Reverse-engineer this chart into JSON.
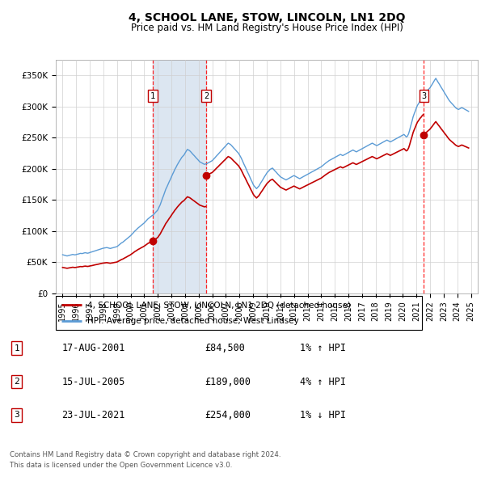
{
  "title": "4, SCHOOL LANE, STOW, LINCOLN, LN1 2DQ",
  "subtitle": "Price paid vs. HM Land Registry's House Price Index (HPI)",
  "legend_line1": "4, SCHOOL LANE, STOW, LINCOLN, LN1 2DQ (detached house)",
  "legend_line2": "HPI: Average price, detached house, West Lindsey",
  "footer1": "Contains HM Land Registry data © Crown copyright and database right 2024.",
  "footer2": "This data is licensed under the Open Government Licence v3.0.",
  "ylabel_ticks": [
    "£0",
    "£50K",
    "£100K",
    "£150K",
    "£200K",
    "£250K",
    "£300K",
    "£350K"
  ],
  "ytick_vals": [
    0,
    50000,
    100000,
    150000,
    200000,
    250000,
    300000,
    350000
  ],
  "ylim": [
    0,
    375000
  ],
  "xlim_start": 1994.5,
  "xlim_end": 2025.5,
  "sales": [
    {
      "label": "1",
      "date_num": 2001.63,
      "price": 84500,
      "date_str": "17-AUG-2001",
      "price_str": "£84,500",
      "hpi_str": "1% ↑ HPI"
    },
    {
      "label": "2",
      "date_num": 2005.54,
      "price": 189000,
      "date_str": "15-JUL-2005",
      "price_str": "£189,000",
      "hpi_str": "4% ↑ HPI"
    },
    {
      "label": "3",
      "date_num": 2021.55,
      "price": 254000,
      "date_str": "23-JUL-2021",
      "price_str": "£254,000",
      "hpi_str": "1% ↓ HPI"
    }
  ],
  "hpi_color": "#5b9bd5",
  "price_color": "#c00000",
  "sale_marker_color": "#c00000",
  "grid_color": "#d0d0d0",
  "vline_color": "#ff0000",
  "shade_color": "#dce6f1",
  "background_color": "#ffffff",
  "hpi_data": [
    [
      1995.0,
      62000
    ],
    [
      1995.08,
      61500
    ],
    [
      1995.17,
      61000
    ],
    [
      1995.25,
      60500
    ],
    [
      1995.33,
      60000
    ],
    [
      1995.42,
      60500
    ],
    [
      1995.5,
      61000
    ],
    [
      1995.58,
      61500
    ],
    [
      1995.67,
      62000
    ],
    [
      1995.75,
      62500
    ],
    [
      1995.83,
      62000
    ],
    [
      1995.92,
      61800
    ],
    [
      1996.0,
      62200
    ],
    [
      1996.08,
      62800
    ],
    [
      1996.17,
      63200
    ],
    [
      1996.25,
      63800
    ],
    [
      1996.33,
      64200
    ],
    [
      1996.42,
      63800
    ],
    [
      1996.5,
      64200
    ],
    [
      1996.58,
      64800
    ],
    [
      1996.67,
      65200
    ],
    [
      1996.75,
      64800
    ],
    [
      1996.83,
      64400
    ],
    [
      1996.92,
      64800
    ],
    [
      1997.0,
      65500
    ],
    [
      1997.08,
      66000
    ],
    [
      1997.17,
      66500
    ],
    [
      1997.25,
      67200
    ],
    [
      1997.33,
      67800
    ],
    [
      1997.42,
      68500
    ],
    [
      1997.5,
      69000
    ],
    [
      1997.58,
      69500
    ],
    [
      1997.67,
      70200
    ],
    [
      1997.75,
      70800
    ],
    [
      1997.83,
      71500
    ],
    [
      1997.92,
      72000
    ],
    [
      1998.0,
      72500
    ],
    [
      1998.08,
      72800
    ],
    [
      1998.17,
      73200
    ],
    [
      1998.25,
      73500
    ],
    [
      1998.33,
      73000
    ],
    [
      1998.42,
      72500
    ],
    [
      1998.5,
      72000
    ],
    [
      1998.58,
      72500
    ],
    [
      1998.67,
      73000
    ],
    [
      1998.75,
      73500
    ],
    [
      1998.83,
      74000
    ],
    [
      1998.92,
      74500
    ],
    [
      1999.0,
      75000
    ],
    [
      1999.08,
      76500
    ],
    [
      1999.17,
      78000
    ],
    [
      1999.25,
      79500
    ],
    [
      1999.33,
      81000
    ],
    [
      1999.42,
      82000
    ],
    [
      1999.5,
      83500
    ],
    [
      1999.58,
      85000
    ],
    [
      1999.67,
      86500
    ],
    [
      1999.75,
      88000
    ],
    [
      1999.83,
      89500
    ],
    [
      1999.92,
      91000
    ],
    [
      2000.0,
      92500
    ],
    [
      2000.08,
      94500
    ],
    [
      2000.17,
      96500
    ],
    [
      2000.25,
      98500
    ],
    [
      2000.33,
      100500
    ],
    [
      2000.42,
      102000
    ],
    [
      2000.5,
      104000
    ],
    [
      2000.58,
      105500
    ],
    [
      2000.67,
      107000
    ],
    [
      2000.75,
      108500
    ],
    [
      2000.83,
      110000
    ],
    [
      2000.92,
      111500
    ],
    [
      2001.0,
      113000
    ],
    [
      2001.08,
      115000
    ],
    [
      2001.17,
      117000
    ],
    [
      2001.25,
      119000
    ],
    [
      2001.33,
      120500
    ],
    [
      2001.42,
      122000
    ],
    [
      2001.5,
      123500
    ],
    [
      2001.58,
      124800
    ],
    [
      2001.67,
      126000
    ],
    [
      2001.75,
      128000
    ],
    [
      2001.83,
      130000
    ],
    [
      2001.92,
      132000
    ],
    [
      2002.0,
      134000
    ],
    [
      2002.08,
      138000
    ],
    [
      2002.17,
      142000
    ],
    [
      2002.25,
      147000
    ],
    [
      2002.33,
      152000
    ],
    [
      2002.42,
      157000
    ],
    [
      2002.5,
      162000
    ],
    [
      2002.58,
      167000
    ],
    [
      2002.67,
      171000
    ],
    [
      2002.75,
      175000
    ],
    [
      2002.83,
      179000
    ],
    [
      2002.92,
      183000
    ],
    [
      2003.0,
      187000
    ],
    [
      2003.08,
      191000
    ],
    [
      2003.17,
      195000
    ],
    [
      2003.25,
      199000
    ],
    [
      2003.33,
      202000
    ],
    [
      2003.42,
      206000
    ],
    [
      2003.5,
      209000
    ],
    [
      2003.58,
      212000
    ],
    [
      2003.67,
      215000
    ],
    [
      2003.75,
      218000
    ],
    [
      2003.83,
      220000
    ],
    [
      2003.92,
      222000
    ],
    [
      2004.0,
      225000
    ],
    [
      2004.08,
      228000
    ],
    [
      2004.17,
      231000
    ],
    [
      2004.25,
      230000
    ],
    [
      2004.33,
      229000
    ],
    [
      2004.42,
      227000
    ],
    [
      2004.5,
      225000
    ],
    [
      2004.58,
      223000
    ],
    [
      2004.67,
      221000
    ],
    [
      2004.75,
      219000
    ],
    [
      2004.83,
      217000
    ],
    [
      2004.92,
      215000
    ],
    [
      2005.0,
      213000
    ],
    [
      2005.08,
      211000
    ],
    [
      2005.17,
      210000
    ],
    [
      2005.25,
      209000
    ],
    [
      2005.33,
      208000
    ],
    [
      2005.42,
      207000
    ],
    [
      2005.5,
      207500
    ],
    [
      2005.58,
      208000
    ],
    [
      2005.67,
      209000
    ],
    [
      2005.75,
      210000
    ],
    [
      2005.83,
      211000
    ],
    [
      2005.92,
      212000
    ],
    [
      2006.0,
      213000
    ],
    [
      2006.08,
      215000
    ],
    [
      2006.17,
      217000
    ],
    [
      2006.25,
      219000
    ],
    [
      2006.33,
      221000
    ],
    [
      2006.42,
      223000
    ],
    [
      2006.5,
      225000
    ],
    [
      2006.58,
      227000
    ],
    [
      2006.67,
      229000
    ],
    [
      2006.75,
      231000
    ],
    [
      2006.83,
      233000
    ],
    [
      2006.92,
      235000
    ],
    [
      2007.0,
      237000
    ],
    [
      2007.08,
      239000
    ],
    [
      2007.17,
      241000
    ],
    [
      2007.25,
      240000
    ],
    [
      2007.33,
      239000
    ],
    [
      2007.42,
      237000
    ],
    [
      2007.5,
      235000
    ],
    [
      2007.58,
      233000
    ],
    [
      2007.67,
      231000
    ],
    [
      2007.75,
      229000
    ],
    [
      2007.83,
      227000
    ],
    [
      2007.92,
      225000
    ],
    [
      2008.0,
      222000
    ],
    [
      2008.08,
      219000
    ],
    [
      2008.17,
      215000
    ],
    [
      2008.25,
      211000
    ],
    [
      2008.33,
      207000
    ],
    [
      2008.42,
      203000
    ],
    [
      2008.5,
      199000
    ],
    [
      2008.58,
      195000
    ],
    [
      2008.67,
      191000
    ],
    [
      2008.75,
      187000
    ],
    [
      2008.83,
      183000
    ],
    [
      2008.92,
      179000
    ],
    [
      2009.0,
      175000
    ],
    [
      2009.08,
      172000
    ],
    [
      2009.17,
      170000
    ],
    [
      2009.25,
      168000
    ],
    [
      2009.33,
      170000
    ],
    [
      2009.42,
      172000
    ],
    [
      2009.5,
      175000
    ],
    [
      2009.58,
      178000
    ],
    [
      2009.67,
      181000
    ],
    [
      2009.75,
      184000
    ],
    [
      2009.83,
      187000
    ],
    [
      2009.92,
      190000
    ],
    [
      2010.0,
      193000
    ],
    [
      2010.08,
      195000
    ],
    [
      2010.17,
      197000
    ],
    [
      2010.25,
      199000
    ],
    [
      2010.33,
      200000
    ],
    [
      2010.42,
      201000
    ],
    [
      2010.5,
      199000
    ],
    [
      2010.58,
      197000
    ],
    [
      2010.67,
      195000
    ],
    [
      2010.75,
      193000
    ],
    [
      2010.83,
      191000
    ],
    [
      2010.92,
      189000
    ],
    [
      2011.0,
      187000
    ],
    [
      2011.08,
      186000
    ],
    [
      2011.17,
      185000
    ],
    [
      2011.25,
      184000
    ],
    [
      2011.33,
      183000
    ],
    [
      2011.42,
      182000
    ],
    [
      2011.5,
      183000
    ],
    [
      2011.58,
      184000
    ],
    [
      2011.67,
      185000
    ],
    [
      2011.75,
      186000
    ],
    [
      2011.83,
      187000
    ],
    [
      2011.92,
      188000
    ],
    [
      2012.0,
      189000
    ],
    [
      2012.08,
      188000
    ],
    [
      2012.17,
      187000
    ],
    [
      2012.25,
      186000
    ],
    [
      2012.33,
      185000
    ],
    [
      2012.42,
      184000
    ],
    [
      2012.5,
      185000
    ],
    [
      2012.58,
      186000
    ],
    [
      2012.67,
      187000
    ],
    [
      2012.75,
      188000
    ],
    [
      2012.83,
      189000
    ],
    [
      2012.92,
      190000
    ],
    [
      2013.0,
      191000
    ],
    [
      2013.08,
      192000
    ],
    [
      2013.17,
      193000
    ],
    [
      2013.25,
      194000
    ],
    [
      2013.33,
      195000
    ],
    [
      2013.42,
      196000
    ],
    [
      2013.5,
      197000
    ],
    [
      2013.58,
      198000
    ],
    [
      2013.67,
      199000
    ],
    [
      2013.75,
      200000
    ],
    [
      2013.83,
      201000
    ],
    [
      2013.92,
      202000
    ],
    [
      2014.0,
      203000
    ],
    [
      2014.08,
      204500
    ],
    [
      2014.17,
      206000
    ],
    [
      2014.25,
      207500
    ],
    [
      2014.33,
      209000
    ],
    [
      2014.42,
      210500
    ],
    [
      2014.5,
      212000
    ],
    [
      2014.58,
      213000
    ],
    [
      2014.67,
      214000
    ],
    [
      2014.75,
      215000
    ],
    [
      2014.83,
      216000
    ],
    [
      2014.92,
      217000
    ],
    [
      2015.0,
      218000
    ],
    [
      2015.08,
      219000
    ],
    [
      2015.17,
      220000
    ],
    [
      2015.25,
      221000
    ],
    [
      2015.33,
      222000
    ],
    [
      2015.42,
      223000
    ],
    [
      2015.5,
      222000
    ],
    [
      2015.58,
      221000
    ],
    [
      2015.67,
      222000
    ],
    [
      2015.75,
      223000
    ],
    [
      2015.83,
      224000
    ],
    [
      2015.92,
      225000
    ],
    [
      2016.0,
      226000
    ],
    [
      2016.08,
      227000
    ],
    [
      2016.17,
      228000
    ],
    [
      2016.25,
      229000
    ],
    [
      2016.33,
      230000
    ],
    [
      2016.42,
      229000
    ],
    [
      2016.5,
      228000
    ],
    [
      2016.58,
      227000
    ],
    [
      2016.67,
      228000
    ],
    [
      2016.75,
      229000
    ],
    [
      2016.83,
      230000
    ],
    [
      2016.92,
      231000
    ],
    [
      2017.0,
      232000
    ],
    [
      2017.08,
      233000
    ],
    [
      2017.17,
      234000
    ],
    [
      2017.25,
      235000
    ],
    [
      2017.33,
      236000
    ],
    [
      2017.42,
      237000
    ],
    [
      2017.5,
      238000
    ],
    [
      2017.58,
      239000
    ],
    [
      2017.67,
      240000
    ],
    [
      2017.75,
      241000
    ],
    [
      2017.83,
      240000
    ],
    [
      2017.92,
      239000
    ],
    [
      2018.0,
      238000
    ],
    [
      2018.08,
      237000
    ],
    [
      2018.17,
      238000
    ],
    [
      2018.25,
      239000
    ],
    [
      2018.33,
      240000
    ],
    [
      2018.42,
      241000
    ],
    [
      2018.5,
      242000
    ],
    [
      2018.58,
      243000
    ],
    [
      2018.67,
      244000
    ],
    [
      2018.75,
      245000
    ],
    [
      2018.83,
      246000
    ],
    [
      2018.92,
      245000
    ],
    [
      2019.0,
      244000
    ],
    [
      2019.08,
      243000
    ],
    [
      2019.17,
      244000
    ],
    [
      2019.25,
      245000
    ],
    [
      2019.33,
      246000
    ],
    [
      2019.42,
      247000
    ],
    [
      2019.5,
      248000
    ],
    [
      2019.58,
      249000
    ],
    [
      2019.67,
      250000
    ],
    [
      2019.75,
      251000
    ],
    [
      2019.83,
      252000
    ],
    [
      2019.92,
      253000
    ],
    [
      2020.0,
      254000
    ],
    [
      2020.08,
      255000
    ],
    [
      2020.17,
      253000
    ],
    [
      2020.25,
      251000
    ],
    [
      2020.33,
      252000
    ],
    [
      2020.42,
      256000
    ],
    [
      2020.5,
      262000
    ],
    [
      2020.58,
      269000
    ],
    [
      2020.67,
      276000
    ],
    [
      2020.75,
      283000
    ],
    [
      2020.83,
      288000
    ],
    [
      2020.92,
      293000
    ],
    [
      2021.0,
      298000
    ],
    [
      2021.08,
      302000
    ],
    [
      2021.17,
      305000
    ],
    [
      2021.25,
      308000
    ],
    [
      2021.33,
      310000
    ],
    [
      2021.42,
      313000
    ],
    [
      2021.5,
      315000
    ],
    [
      2021.58,
      318000
    ],
    [
      2021.67,
      321000
    ],
    [
      2021.75,
      324000
    ],
    [
      2021.83,
      326000
    ],
    [
      2021.92,
      328000
    ],
    [
      2022.0,
      330000
    ],
    [
      2022.08,
      333000
    ],
    [
      2022.17,
      336000
    ],
    [
      2022.25,
      339000
    ],
    [
      2022.33,
      342000
    ],
    [
      2022.42,
      345000
    ],
    [
      2022.5,
      342000
    ],
    [
      2022.58,
      339000
    ],
    [
      2022.67,
      336000
    ],
    [
      2022.75,
      333000
    ],
    [
      2022.83,
      330000
    ],
    [
      2022.92,
      327000
    ],
    [
      2023.0,
      324000
    ],
    [
      2023.08,
      321000
    ],
    [
      2023.17,
      318000
    ],
    [
      2023.25,
      315000
    ],
    [
      2023.33,
      312000
    ],
    [
      2023.42,
      309000
    ],
    [
      2023.5,
      307000
    ],
    [
      2023.58,
      305000
    ],
    [
      2023.67,
      303000
    ],
    [
      2023.75,
      301000
    ],
    [
      2023.83,
      299000
    ],
    [
      2023.92,
      297000
    ],
    [
      2024.0,
      296000
    ],
    [
      2024.08,
      295000
    ],
    [
      2024.17,
      296000
    ],
    [
      2024.25,
      297000
    ],
    [
      2024.33,
      298000
    ],
    [
      2024.42,
      297000
    ],
    [
      2024.5,
      296000
    ],
    [
      2024.58,
      295000
    ],
    [
      2024.67,
      294000
    ],
    [
      2024.75,
      293000
    ],
    [
      2024.83,
      292000
    ]
  ]
}
